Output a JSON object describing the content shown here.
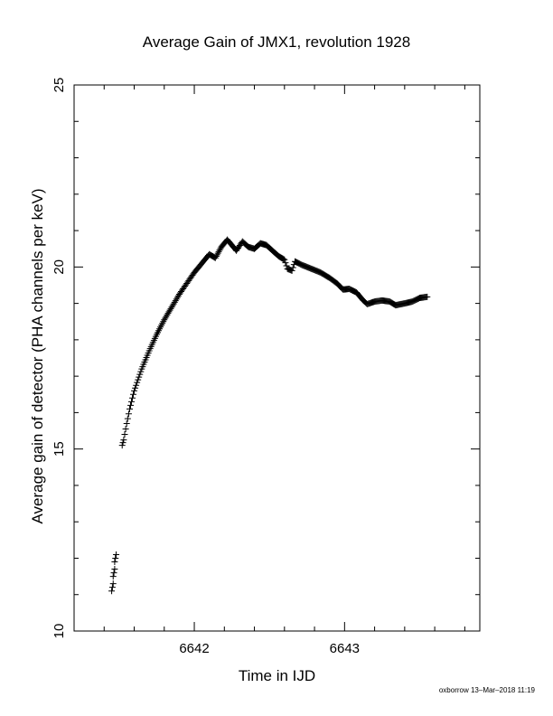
{
  "chart_data": {
    "type": "scatter",
    "title": "Average Gain of JMX1, revolution 1928",
    "xlabel": "Time in IJD",
    "ylabel": "Average gain of detector (PHA channels per keV)",
    "xlim": [
      6641.2,
      6643.9
    ],
    "ylim": [
      10,
      25
    ],
    "xticks": [
      6642,
      6643
    ],
    "yticks": [
      10,
      15,
      20,
      25
    ],
    "marker": "+",
    "grid": false,
    "legend": false,
    "series": [
      {
        "points": [
          [
            6641.45,
            11.1
          ],
          [
            6641.46,
            11.3
          ],
          [
            6641.46,
            11.5
          ],
          [
            6641.47,
            11.7
          ],
          [
            6641.47,
            11.9
          ],
          [
            6641.48,
            12.1
          ],
          [
            6641.52,
            15.1
          ],
          [
            6641.53,
            15.25
          ],
          [
            6641.55,
            15.7
          ],
          [
            6641.57,
            16.1
          ],
          [
            6641.6,
            16.6
          ],
          [
            6641.65,
            17.2
          ],
          [
            6641.7,
            17.7
          ],
          [
            6641.75,
            18.15
          ],
          [
            6641.8,
            18.55
          ],
          [
            6641.85,
            18.9
          ],
          [
            6641.9,
            19.25
          ],
          [
            6641.95,
            19.55
          ],
          [
            6642.0,
            19.85
          ],
          [
            6642.05,
            20.1
          ],
          [
            6642.1,
            20.35
          ],
          [
            6642.14,
            20.25
          ],
          [
            6642.18,
            20.55
          ],
          [
            6642.22,
            20.75
          ],
          [
            6642.25,
            20.6
          ],
          [
            6642.28,
            20.45
          ],
          [
            6642.32,
            20.7
          ],
          [
            6642.36,
            20.55
          ],
          [
            6642.4,
            20.5
          ],
          [
            6642.44,
            20.65
          ],
          [
            6642.48,
            20.6
          ],
          [
            6642.52,
            20.45
          ],
          [
            6642.56,
            20.3
          ],
          [
            6642.6,
            20.2
          ],
          [
            6642.62,
            19.95
          ],
          [
            6642.65,
            19.9
          ],
          [
            6642.67,
            20.15
          ],
          [
            6642.72,
            20.05
          ],
          [
            6642.78,
            19.95
          ],
          [
            6642.84,
            19.85
          ],
          [
            6642.9,
            19.7
          ],
          [
            6642.95,
            19.55
          ],
          [
            6642.99,
            19.38
          ],
          [
            6643.03,
            19.4
          ],
          [
            6643.08,
            19.3
          ],
          [
            6643.12,
            19.1
          ],
          [
            6643.15,
            18.98
          ],
          [
            6643.2,
            19.05
          ],
          [
            6643.25,
            19.08
          ],
          [
            6643.3,
            19.05
          ],
          [
            6643.34,
            18.95
          ],
          [
            6643.4,
            19.0
          ],
          [
            6643.45,
            19.05
          ],
          [
            6643.5,
            19.15
          ],
          [
            6643.55,
            19.18
          ]
        ]
      }
    ]
  },
  "footer": {
    "credit": "oxborrow 13–Mar–2018 11:19"
  }
}
